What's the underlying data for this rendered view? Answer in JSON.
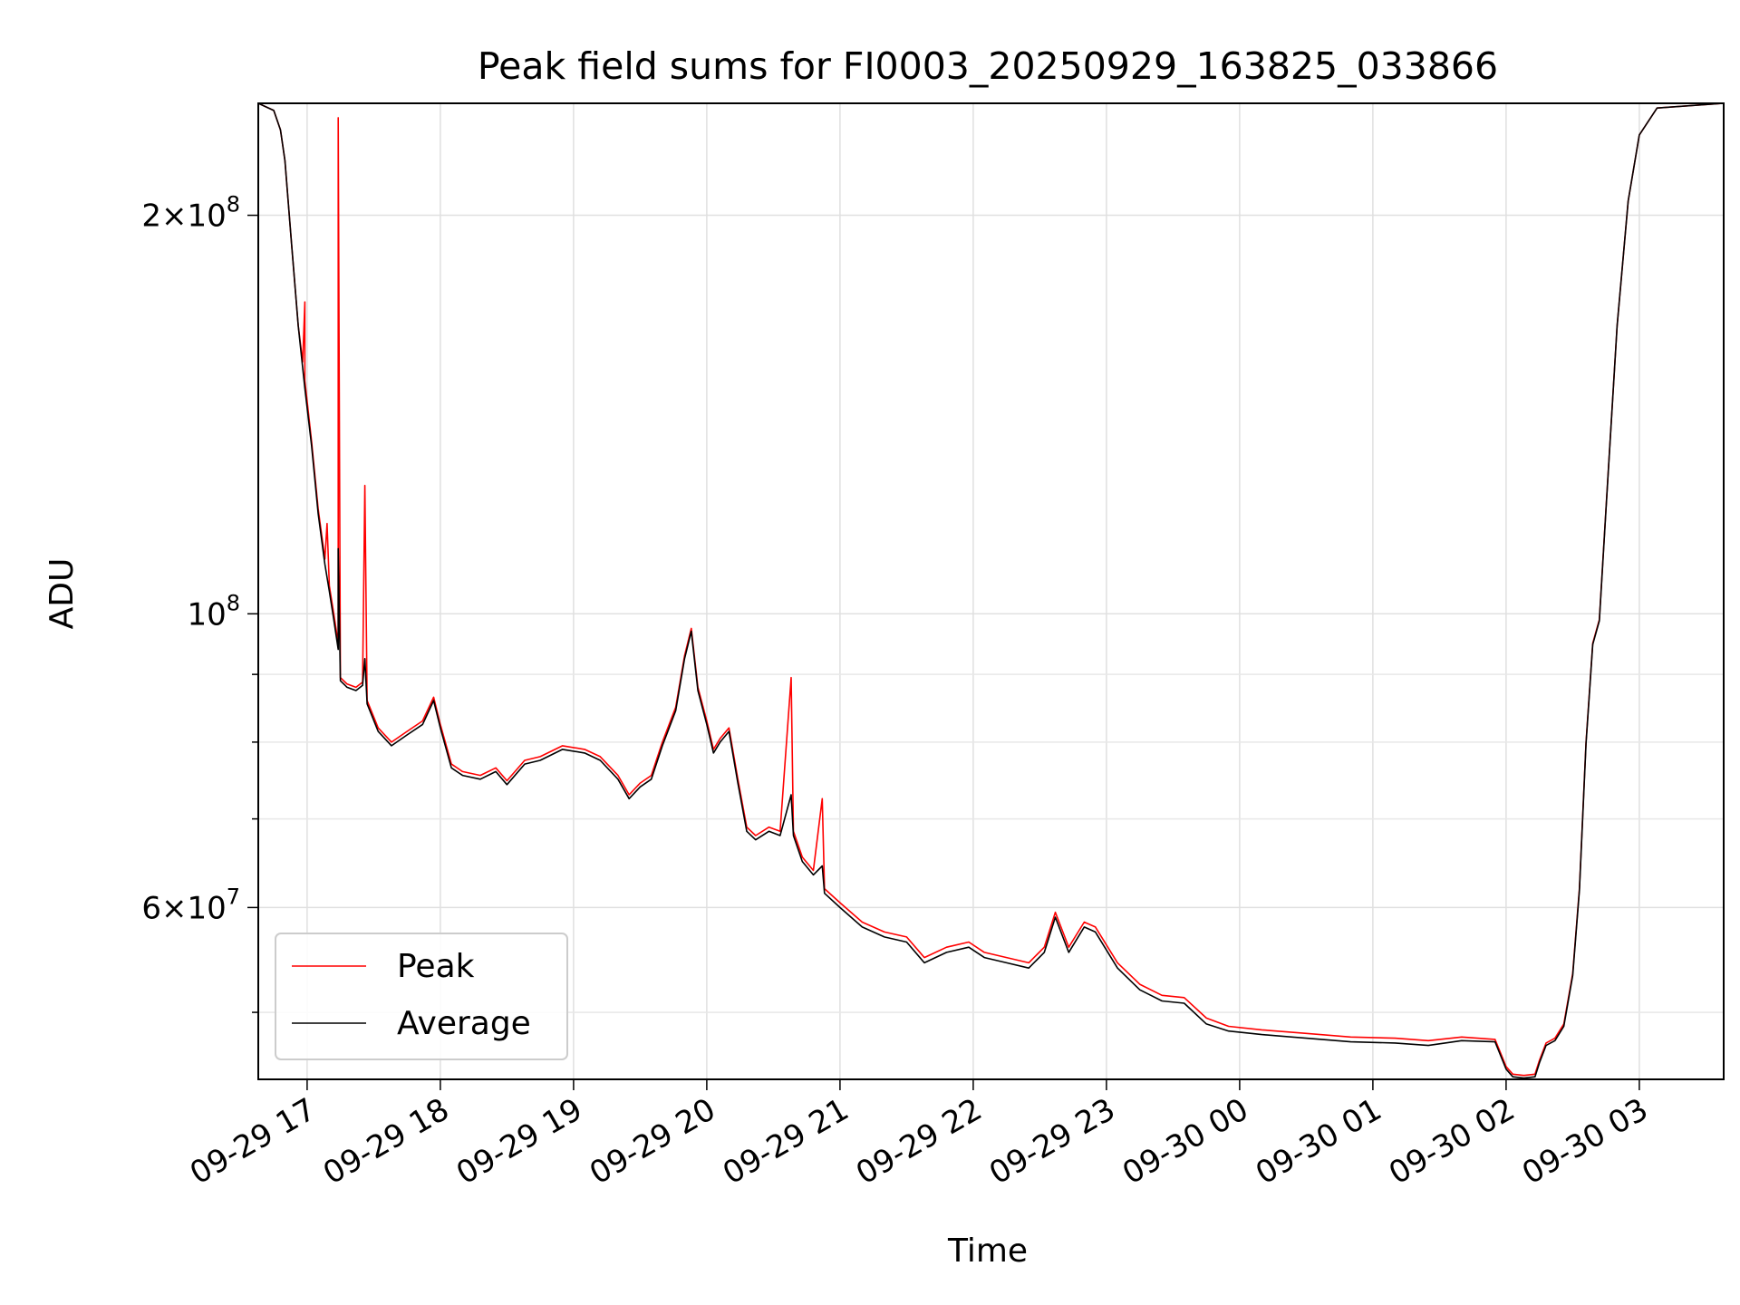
{
  "chart_data": {
    "type": "line",
    "title": "Peak field sums for FI0003_20250929_163825_033866",
    "xlabel": "Time",
    "ylabel": "ADU",
    "yscale": "log",
    "xlim": [
      "2025-09-29 16:38",
      "2025-09-30 03:38"
    ],
    "ylim": [
      44500000,
      243000000
    ],
    "grid": true,
    "legend": "lower-left",
    "x_ticks": [
      "09-29 17",
      "09-29 18",
      "09-29 19",
      "09-29 20",
      "09-29 21",
      "09-29 22",
      "09-29 23",
      "09-30 00",
      "09-30 01",
      "09-30 02",
      "09-30 03"
    ],
    "y_ticks": [
      {
        "value": 200000000,
        "mantissa": "2",
        "exponent": "8"
      },
      {
        "value": 100000000,
        "mantissa": "",
        "exponent": "8"
      },
      {
        "value": 60000000,
        "mantissa": "6",
        "exponent": "7"
      }
    ],
    "y_minor_ticks": [
      50000000,
      70000000,
      80000000,
      90000000
    ],
    "series": [
      {
        "name": "Peak",
        "color": "#ff0000",
        "points": [
          [
            "2025-09-29 16:38",
            243000000
          ],
          [
            "2025-09-29 16:45",
            240000000
          ],
          [
            "2025-09-29 16:48",
            232000000
          ],
          [
            "2025-09-29 16:50",
            220000000
          ],
          [
            "2025-09-29 16:53",
            190000000
          ],
          [
            "2025-09-29 16:56",
            165000000
          ],
          [
            "2025-09-29 16:58",
            155000000
          ],
          [
            "2025-09-29 16:59",
            172000000
          ],
          [
            "2025-09-29 16:59",
            150000000
          ],
          [
            "2025-09-29 17:02",
            135000000
          ],
          [
            "2025-09-29 17:05",
            120000000
          ],
          [
            "2025-09-29 17:08",
            110000000
          ],
          [
            "2025-09-29 17:09",
            117000000
          ],
          [
            "2025-09-29 17:10",
            105000000
          ],
          [
            "2025-09-29 17:12",
            100000000
          ],
          [
            "2025-09-29 17:14",
            95000000
          ],
          [
            "2025-09-29 17:14",
            237000000
          ],
          [
            "2025-09-29 17:15",
            89500000
          ],
          [
            "2025-09-29 17:18",
            88500000
          ],
          [
            "2025-09-29 17:22",
            88000000
          ],
          [
            "2025-09-29 17:25",
            88800000
          ],
          [
            "2025-09-29 17:26",
            125000000
          ],
          [
            "2025-09-29 17:27",
            86000000
          ],
          [
            "2025-09-29 17:32",
            82000000
          ],
          [
            "2025-09-29 17:38",
            80000000
          ],
          [
            "2025-09-29 17:45",
            81500000
          ],
          [
            "2025-09-29 17:52",
            83000000
          ],
          [
            "2025-09-29 17:57",
            86500000
          ],
          [
            "2025-09-29 18:00",
            82500000
          ],
          [
            "2025-09-29 18:05",
            77000000
          ],
          [
            "2025-09-29 18:10",
            76000000
          ],
          [
            "2025-09-29 18:18",
            75500000
          ],
          [
            "2025-09-29 18:25",
            76500000
          ],
          [
            "2025-09-29 18:30",
            74800000
          ],
          [
            "2025-09-29 18:38",
            77500000
          ],
          [
            "2025-09-29 18:45",
            78000000
          ],
          [
            "2025-09-29 18:55",
            79500000
          ],
          [
            "2025-09-29 19:05",
            79000000
          ],
          [
            "2025-09-29 19:12",
            78000000
          ],
          [
            "2025-09-29 19:20",
            75500000
          ],
          [
            "2025-09-29 19:25",
            73000000
          ],
          [
            "2025-09-29 19:30",
            74500000
          ],
          [
            "2025-09-29 19:35",
            75500000
          ],
          [
            "2025-09-29 19:40",
            80000000
          ],
          [
            "2025-09-29 19:46",
            85000000
          ],
          [
            "2025-09-29 19:50",
            93000000
          ],
          [
            "2025-09-29 19:53",
            97500000
          ],
          [
            "2025-09-29 19:56",
            88000000
          ],
          [
            "2025-09-29 20:00",
            83000000
          ],
          [
            "2025-09-29 20:03",
            79000000
          ],
          [
            "2025-09-29 20:06",
            80500000
          ],
          [
            "2025-09-29 20:10",
            82000000
          ],
          [
            "2025-09-29 20:14",
            75000000
          ],
          [
            "2025-09-29 20:18",
            69000000
          ],
          [
            "2025-09-29 20:22",
            68000000
          ],
          [
            "2025-09-29 20:28",
            69000000
          ],
          [
            "2025-09-29 20:33",
            68500000
          ],
          [
            "2025-09-29 20:38",
            89500000
          ],
          [
            "2025-09-29 20:39",
            68500000
          ],
          [
            "2025-09-29 20:43",
            65500000
          ],
          [
            "2025-09-29 20:48",
            64000000
          ],
          [
            "2025-09-29 20:52",
            72500000
          ],
          [
            "2025-09-29 20:53",
            62000000
          ],
          [
            "2025-09-29 21:00",
            60500000
          ],
          [
            "2025-09-29 21:10",
            58500000
          ],
          [
            "2025-09-29 21:20",
            57500000
          ],
          [
            "2025-09-29 21:30",
            57000000
          ],
          [
            "2025-09-29 21:38",
            55000000
          ],
          [
            "2025-09-29 21:48",
            56000000
          ],
          [
            "2025-09-29 21:58",
            56500000
          ],
          [
            "2025-09-29 22:05",
            55500000
          ],
          [
            "2025-09-29 22:15",
            55000000
          ],
          [
            "2025-09-29 22:25",
            54500000
          ],
          [
            "2025-09-29 22:32",
            56000000
          ],
          [
            "2025-09-29 22:37",
            59500000
          ],
          [
            "2025-09-29 22:43",
            56000000
          ],
          [
            "2025-09-29 22:50",
            58500000
          ],
          [
            "2025-09-29 22:55",
            58000000
          ],
          [
            "2025-09-29 23:05",
            54500000
          ],
          [
            "2025-09-29 23:15",
            52500000
          ],
          [
            "2025-09-29 23:25",
            51500000
          ],
          [
            "2025-09-29 23:35",
            51300000
          ],
          [
            "2025-09-29 23:45",
            49500000
          ],
          [
            "2025-09-29 23:55",
            48800000
          ],
          [
            "2025-09-30 00:10",
            48500000
          ],
          [
            "2025-09-30 00:30",
            48200000
          ],
          [
            "2025-09-30 00:50",
            47900000
          ],
          [
            "2025-09-30 01:10",
            47800000
          ],
          [
            "2025-09-30 01:25",
            47600000
          ],
          [
            "2025-09-30 01:40",
            47900000
          ],
          [
            "2025-09-30 01:55",
            47700000
          ],
          [
            "2025-09-30 02:00",
            45500000
          ],
          [
            "2025-09-30 02:03",
            44900000
          ],
          [
            "2025-09-30 02:08",
            44800000
          ],
          [
            "2025-09-30 02:13",
            44900000
          ],
          [
            "2025-09-30 02:15",
            46000000
          ],
          [
            "2025-09-30 02:18",
            47400000
          ],
          [
            "2025-09-30 02:22",
            47800000
          ],
          [
            "2025-09-30 02:26",
            49000000
          ],
          [
            "2025-09-30 02:30",
            53500000
          ],
          [
            "2025-09-30 02:33",
            62000000
          ],
          [
            "2025-09-30 02:36",
            80000000
          ],
          [
            "2025-09-30 02:39",
            95000000
          ],
          [
            "2025-09-30 02:42",
            99000000
          ],
          [
            "2025-09-30 02:45",
            120000000
          ],
          [
            "2025-09-30 02:50",
            165000000
          ],
          [
            "2025-09-30 02:55",
            205000000
          ],
          [
            "2025-09-30 03:00",
            230000000
          ],
          [
            "2025-09-30 03:08",
            241000000
          ],
          [
            "2025-09-30 03:38",
            243000000
          ]
        ]
      },
      {
        "name": "Average",
        "color": "#000000",
        "points": [
          [
            "2025-09-29 16:38",
            243000000
          ],
          [
            "2025-09-29 16:45",
            240000000
          ],
          [
            "2025-09-29 16:48",
            232000000
          ],
          [
            "2025-09-29 16:50",
            220000000
          ],
          [
            "2025-09-29 16:53",
            190000000
          ],
          [
            "2025-09-29 16:56",
            165000000
          ],
          [
            "2025-09-29 16:59",
            148000000
          ],
          [
            "2025-09-29 17:02",
            134000000
          ],
          [
            "2025-09-29 17:05",
            119000000
          ],
          [
            "2025-09-29 17:08",
            109000000
          ],
          [
            "2025-09-29 17:10",
            104000000
          ],
          [
            "2025-09-29 17:12",
            99000000
          ],
          [
            "2025-09-29 17:14",
            94000000
          ],
          [
            "2025-09-29 17:14",
            112000000
          ],
          [
            "2025-09-29 17:15",
            89000000
          ],
          [
            "2025-09-29 17:18",
            88000000
          ],
          [
            "2025-09-29 17:22",
            87500000
          ],
          [
            "2025-09-29 17:25",
            88300000
          ],
          [
            "2025-09-29 17:26",
            92500000
          ],
          [
            "2025-09-29 17:27",
            85500000
          ],
          [
            "2025-09-29 17:32",
            81500000
          ],
          [
            "2025-09-29 17:38",
            79500000
          ],
          [
            "2025-09-29 17:45",
            81000000
          ],
          [
            "2025-09-29 17:52",
            82500000
          ],
          [
            "2025-09-29 17:57",
            86000000
          ],
          [
            "2025-09-29 18:00",
            82000000
          ],
          [
            "2025-09-29 18:05",
            76500000
          ],
          [
            "2025-09-29 18:10",
            75500000
          ],
          [
            "2025-09-29 18:18",
            75000000
          ],
          [
            "2025-09-29 18:25",
            76000000
          ],
          [
            "2025-09-29 18:30",
            74300000
          ],
          [
            "2025-09-29 18:38",
            77000000
          ],
          [
            "2025-09-29 18:45",
            77500000
          ],
          [
            "2025-09-29 18:55",
            79000000
          ],
          [
            "2025-09-29 19:05",
            78500000
          ],
          [
            "2025-09-29 19:12",
            77500000
          ],
          [
            "2025-09-29 19:20",
            75000000
          ],
          [
            "2025-09-29 19:25",
            72500000
          ],
          [
            "2025-09-29 19:30",
            74000000
          ],
          [
            "2025-09-29 19:35",
            75000000
          ],
          [
            "2025-09-29 19:40",
            79500000
          ],
          [
            "2025-09-29 19:46",
            84500000
          ],
          [
            "2025-09-29 19:50",
            92500000
          ],
          [
            "2025-09-29 19:53",
            97000000
          ],
          [
            "2025-09-29 19:56",
            87500000
          ],
          [
            "2025-09-29 20:00",
            82500000
          ],
          [
            "2025-09-29 20:03",
            78500000
          ],
          [
            "2025-09-29 20:06",
            80000000
          ],
          [
            "2025-09-29 20:10",
            81500000
          ],
          [
            "2025-09-29 20:14",
            74500000
          ],
          [
            "2025-09-29 20:18",
            68500000
          ],
          [
            "2025-09-29 20:22",
            67500000
          ],
          [
            "2025-09-29 20:28",
            68500000
          ],
          [
            "2025-09-29 20:33",
            68000000
          ],
          [
            "2025-09-29 20:38",
            73000000
          ],
          [
            "2025-09-29 20:39",
            68000000
          ],
          [
            "2025-09-29 20:43",
            65000000
          ],
          [
            "2025-09-29 20:48",
            63500000
          ],
          [
            "2025-09-29 20:52",
            64500000
          ],
          [
            "2025-09-29 20:53",
            61500000
          ],
          [
            "2025-09-29 21:00",
            60000000
          ],
          [
            "2025-09-29 21:10",
            58000000
          ],
          [
            "2025-09-29 21:20",
            57000000
          ],
          [
            "2025-09-29 21:30",
            56500000
          ],
          [
            "2025-09-29 21:38",
            54500000
          ],
          [
            "2025-09-29 21:48",
            55500000
          ],
          [
            "2025-09-29 21:58",
            56000000
          ],
          [
            "2025-09-29 22:05",
            55000000
          ],
          [
            "2025-09-29 22:15",
            54500000
          ],
          [
            "2025-09-29 22:25",
            54000000
          ],
          [
            "2025-09-29 22:32",
            55500000
          ],
          [
            "2025-09-29 22:37",
            59000000
          ],
          [
            "2025-09-29 22:43",
            55500000
          ],
          [
            "2025-09-29 22:50",
            58000000
          ],
          [
            "2025-09-29 22:55",
            57500000
          ],
          [
            "2025-09-29 23:05",
            54000000
          ],
          [
            "2025-09-29 23:15",
            52000000
          ],
          [
            "2025-09-29 23:25",
            51000000
          ],
          [
            "2025-09-29 23:35",
            50800000
          ],
          [
            "2025-09-29 23:45",
            49000000
          ],
          [
            "2025-09-29 23:55",
            48400000
          ],
          [
            "2025-09-30 00:10",
            48100000
          ],
          [
            "2025-09-30 00:30",
            47800000
          ],
          [
            "2025-09-30 00:50",
            47500000
          ],
          [
            "2025-09-30 01:10",
            47400000
          ],
          [
            "2025-09-30 01:25",
            47200000
          ],
          [
            "2025-09-30 01:40",
            47600000
          ],
          [
            "2025-09-30 01:55",
            47500000
          ],
          [
            "2025-09-30 02:00",
            45300000
          ],
          [
            "2025-09-30 02:03",
            44700000
          ],
          [
            "2025-09-30 02:08",
            44600000
          ],
          [
            "2025-09-30 02:13",
            44700000
          ],
          [
            "2025-09-30 02:15",
            45800000
          ],
          [
            "2025-09-30 02:18",
            47200000
          ],
          [
            "2025-09-30 02:22",
            47600000
          ],
          [
            "2025-09-30 02:26",
            48800000
          ],
          [
            "2025-09-30 02:30",
            53300000
          ],
          [
            "2025-09-30 02:33",
            61800000
          ],
          [
            "2025-09-30 02:36",
            79800000
          ],
          [
            "2025-09-30 02:39",
            94800000
          ],
          [
            "2025-09-30 02:42",
            98800000
          ],
          [
            "2025-09-30 02:45",
            119800000
          ],
          [
            "2025-09-30 02:50",
            165000000
          ],
          [
            "2025-09-30 02:55",
            205000000
          ],
          [
            "2025-09-30 03:00",
            230000000
          ],
          [
            "2025-09-30 03:08",
            241000000
          ],
          [
            "2025-09-30 03:38",
            243000000
          ]
        ]
      }
    ]
  }
}
